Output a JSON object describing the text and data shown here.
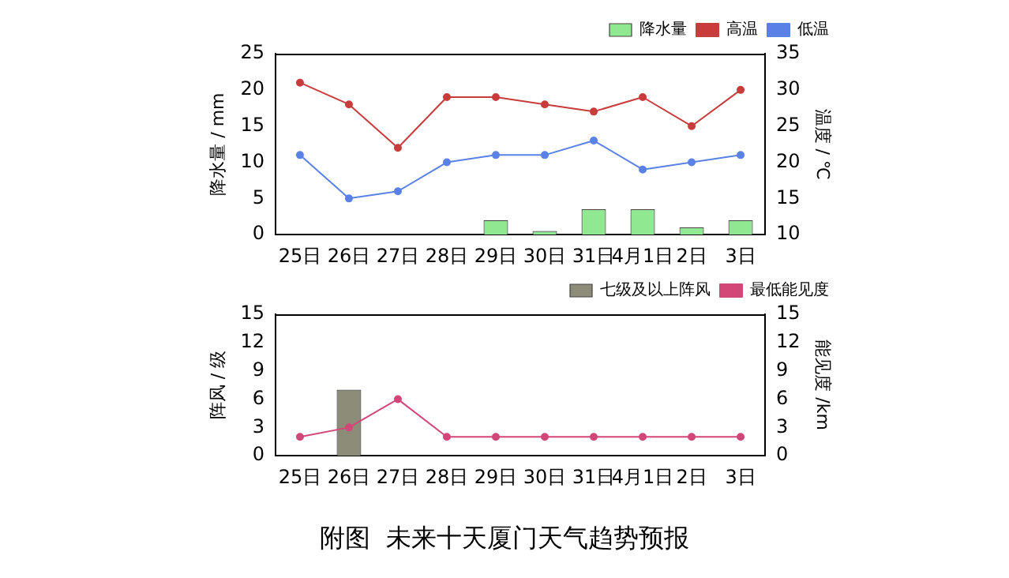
{
  "chart_data": [
    {
      "type": "bar",
      "categories": [
        "25日",
        "26日",
        "27日",
        "28日",
        "29日",
        "30日",
        "31日",
        "4月1日",
        "2日",
        "3日"
      ],
      "ylabel": "降水量 / mm",
      "y2label": "温度 / ℃",
      "ylim": [
        0,
        25
      ],
      "yticks": [
        0,
        5,
        10,
        15,
        20,
        25
      ],
      "y2lim": [
        10,
        35
      ],
      "y2ticks": [
        10,
        15,
        20,
        25,
        30,
        35
      ],
      "grid": false,
      "legend": "top right",
      "marker": "circle",
      "series": [
        {
          "name": "降水量",
          "color": "#90e890",
          "values": [
            0,
            0,
            0,
            0,
            2,
            0.5,
            3.5,
            3.5,
            1,
            2
          ]
        },
        {
          "name": "高温",
          "type": "line",
          "axis": "y2",
          "color": "#c83c3c",
          "values": [
            31,
            28,
            22,
            29,
            29,
            28,
            27,
            29,
            25,
            30
          ]
        },
        {
          "name": "低温",
          "type": "line",
          "axis": "y2",
          "color": "#5a82e6",
          "values": [
            21,
            15,
            16,
            20,
            21,
            21,
            23,
            19,
            20,
            21
          ]
        }
      ]
    },
    {
      "type": "bar",
      "categories": [
        "25日",
        "26日",
        "27日",
        "28日",
        "29日",
        "30日",
        "31日",
        "4月1日",
        "2日",
        "3日"
      ],
      "ylabel": "阵风 / 级",
      "y2label": "能见度 /km",
      "ylim": [
        0,
        15
      ],
      "yticks": [
        0,
        3,
        6,
        9,
        12,
        15
      ],
      "y2lim": [
        0,
        15
      ],
      "y2ticks": [
        0,
        3,
        6,
        9,
        12,
        15
      ],
      "grid": false,
      "legend": "top right",
      "marker": "circle",
      "annotations": [
        "附图  未来十天厦门天气趋势预报"
      ],
      "series": [
        {
          "name": "七级及以上阵风",
          "color": "#8c8c78",
          "values": [
            null,
            7,
            null,
            null,
            null,
            null,
            null,
            null,
            null,
            null
          ]
        },
        {
          "name": "最低能见度",
          "type": "line",
          "axis": "y2",
          "color": "#d24678",
          "values": [
            2,
            3,
            6,
            2,
            2,
            2,
            2,
            2,
            2,
            2
          ]
        }
      ]
    }
  ]
}
